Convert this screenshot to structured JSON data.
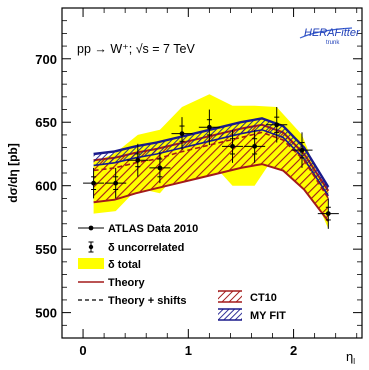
{
  "chart_data": {
    "type": "line",
    "ylabel": "dσ/dη [pb]",
    "xlabel": "η",
    "xlabel_sub": "l",
    "annotation": "pp → W⁺; √s = 7 TeV",
    "logo_text": [
      "HERAFitter",
      "trunk"
    ],
    "xlim": [
      -0.2,
      2.65
    ],
    "ylim": [
      480,
      740
    ],
    "x_ticks": [
      0,
      1,
      2
    ],
    "x_tick_labels": [
      "0",
      "1",
      "2"
    ],
    "y_ticks": [
      500,
      550,
      600,
      650,
      700
    ],
    "y_tick_labels": [
      "500",
      "550",
      "600",
      "650",
      "700"
    ],
    "x": [
      0.1,
      0.31,
      0.52,
      0.73,
      0.94,
      1.2,
      1.42,
      1.63,
      1.84,
      2.08,
      2.33
    ],
    "data": {
      "name": "ATLAS Data 2010",
      "values": [
        602,
        602,
        620,
        614,
        641,
        646,
        631,
        631,
        648,
        628,
        578
      ],
      "x_err": [
        0.1,
        0.1,
        0.1,
        0.1,
        0.1,
        0.1,
        0.1,
        0.1,
        0.1,
        0.1,
        0.1
      ],
      "stat_err": [
        5,
        5,
        5,
        7,
        6,
        6,
        6,
        6,
        6,
        6,
        5
      ],
      "total_err": [
        12,
        12,
        13,
        12,
        13,
        14,
        13,
        13,
        14,
        14,
        12
      ]
    },
    "delta_total_band": {
      "name": "δ total",
      "upper": [
        618,
        626,
        640,
        644,
        662,
        672,
        663,
        663,
        662,
        640,
        588
      ],
      "lower": [
        578,
        580,
        598,
        594,
        614,
        620,
        600,
        600,
        626,
        614,
        566
      ],
      "color": "#ffff00"
    },
    "ct10": {
      "name": "CT10",
      "color": "#a31a1a",
      "x": [
        0.1,
        0.3,
        0.5,
        0.7,
        0.9,
        1.1,
        1.3,
        1.5,
        1.7,
        1.9,
        2.1,
        2.33
      ],
      "upper": [
        620,
        622,
        626,
        629,
        633,
        637,
        641,
        645,
        648,
        642,
        625,
        596
      ],
      "lower": [
        587,
        589,
        594,
        598,
        602,
        606,
        610,
        614,
        617,
        612,
        597,
        572
      ]
    },
    "my_fit": {
      "name": "MY FIT",
      "color": "#1a1a8c",
      "x": [
        0.1,
        0.3,
        0.5,
        0.7,
        0.9,
        1.1,
        1.3,
        1.5,
        1.7,
        1.9,
        2.1,
        2.33
      ],
      "upper": [
        625,
        627,
        631,
        634,
        638,
        642,
        646,
        650,
        653,
        647,
        630,
        599
      ],
      "lower": [
        616,
        618,
        622,
        625,
        629,
        633,
        637,
        641,
        644,
        638,
        621,
        592
      ]
    },
    "theory_shifts": {
      "x": [
        0.1,
        0.3,
        0.5,
        0.7,
        0.9,
        1.1,
        1.3,
        1.5,
        1.7,
        1.9,
        2.1,
        2.33
      ],
      "values": [
        612,
        614,
        618,
        621,
        626,
        630,
        634,
        638,
        642,
        636,
        620,
        590
      ]
    },
    "legend": [
      {
        "key": "data",
        "label": "ATLAS Data 2010"
      },
      {
        "key": "uncorr",
        "label": "δ uncorrelated"
      },
      {
        "key": "total",
        "label": "δ total"
      },
      {
        "key": "theory",
        "label": "Theory"
      },
      {
        "key": "shifts",
        "label": "Theory + shifts"
      },
      {
        "key": "ct10",
        "label": "CT10"
      },
      {
        "key": "myfit",
        "label": "MY FIT"
      }
    ],
    "legend_placement": "bottom-left"
  }
}
